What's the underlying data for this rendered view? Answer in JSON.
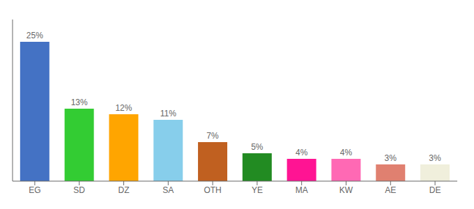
{
  "chart_data": {
    "type": "bar",
    "categories": [
      "EG",
      "SD",
      "DZ",
      "SA",
      "OTH",
      "YE",
      "MA",
      "KW",
      "AE",
      "DE"
    ],
    "values": [
      25,
      13,
      12,
      11,
      7,
      5,
      4,
      4,
      3,
      3
    ],
    "value_labels": [
      "25%",
      "13%",
      "12%",
      "11%",
      "7%",
      "5%",
      "4%",
      "4%",
      "3%",
      "3%"
    ],
    "data_labels": true,
    "colors": [
      "#4472C4",
      "#33CC33",
      "#FFA500",
      "#87CEEB",
      "#C06020",
      "#228B22",
      "#FF1493",
      "#FF69B4",
      "#E08070",
      "#F0EFDC"
    ],
    "ylim": [
      0,
      29
    ],
    "tick_labels": "x",
    "grid": false
  }
}
